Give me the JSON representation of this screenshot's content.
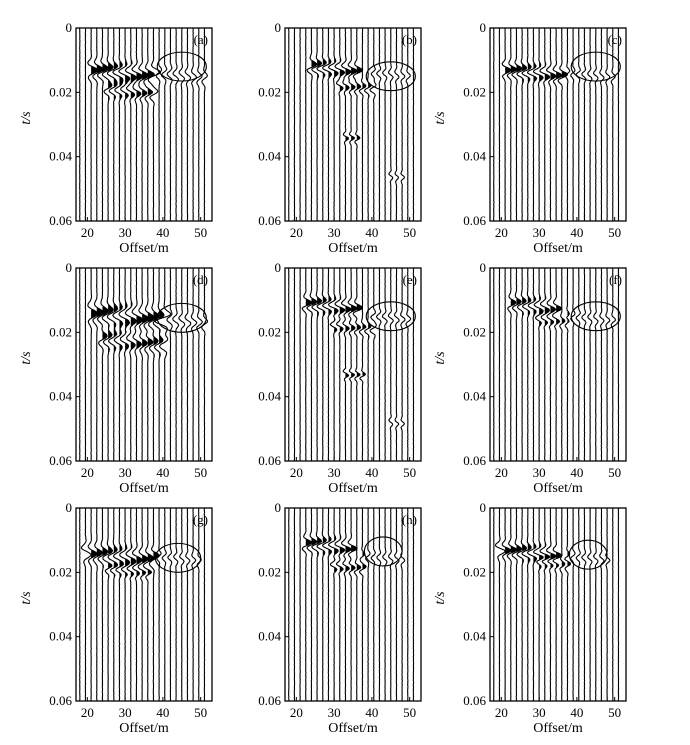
{
  "chart_data": [
    {
      "id": "a",
      "type": "line",
      "panel_label": "(a)",
      "xlabel": "Offset/m",
      "ylabel": "t/s",
      "xlim": [
        17,
        53
      ],
      "ylim": [
        0,
        0.06
      ],
      "y_inverted": true,
      "xticks": [
        20,
        30,
        40,
        50
      ],
      "xtick_labels": [
        "20",
        "30",
        "40",
        "50"
      ],
      "yticks": [
        0,
        0.02,
        0.04,
        0.06
      ],
      "ytick_labels": [
        "0",
        "0.02",
        "0.04",
        "0.06"
      ],
      "trace_offsets": [
        18,
        19.5,
        21,
        22.5,
        24,
        25.5,
        27,
        28.5,
        30,
        31.5,
        33,
        34.5,
        36,
        37.5,
        39,
        40.5,
        42,
        43.5,
        45,
        46.5,
        48,
        49.5,
        51
      ],
      "events": [
        {
          "offset_start": 21,
          "offset_end": 37,
          "t": 0.013,
          "amp": 1.0,
          "width": 0.0035,
          "fill": true
        },
        {
          "offset_start": 25,
          "offset_end": 37,
          "t": 0.019,
          "amp": 0.7,
          "width": 0.003,
          "fill": true
        },
        {
          "offset_start": 38,
          "offset_end": 51,
          "t": 0.014,
          "amp": 0.5,
          "width": 0.003,
          "fill": false
        }
      ],
      "annotation": {
        "type": "ellipse",
        "cx": 45,
        "cy": 0.012,
        "rx": 6.5,
        "ry": 0.0045
      }
    },
    {
      "id": "b",
      "type": "line",
      "panel_label": "(b)",
      "xlabel": "Offset/m",
      "ylabel": "",
      "xlim": [
        17,
        53
      ],
      "ylim": [
        0,
        0.06
      ],
      "y_inverted": true,
      "xticks": [
        20,
        30,
        40,
        50
      ],
      "xtick_labels": [
        "20",
        "30",
        "40",
        "50"
      ],
      "yticks": [
        0,
        0.02,
        0.04,
        0.06
      ],
      "ytick_labels": [
        "0",
        "0.02",
        "0.04",
        "0.06"
      ],
      "trace_offsets": [
        18,
        19.5,
        21,
        22.5,
        24,
        25.5,
        27,
        28.5,
        30,
        31.5,
        33,
        34.5,
        36,
        37.5,
        39,
        40.5,
        42,
        43.5,
        45,
        46.5,
        48,
        49.5,
        51
      ],
      "events": [
        {
          "offset_start": 24,
          "offset_end": 36,
          "t": 0.012,
          "amp": 0.9,
          "width": 0.003,
          "fill": true
        },
        {
          "offset_start": 32,
          "offset_end": 40,
          "t": 0.018,
          "amp": 0.6,
          "width": 0.0025,
          "fill": true
        },
        {
          "offset_start": 40,
          "offset_end": 50,
          "t": 0.014,
          "amp": 0.4,
          "width": 0.0025,
          "fill": false
        },
        {
          "offset_start": 33,
          "offset_end": 36,
          "t": 0.034,
          "amp": 0.5,
          "width": 0.002,
          "fill": true
        },
        {
          "offset_start": 45,
          "offset_end": 48,
          "t": 0.046,
          "amp": 0.35,
          "width": 0.002,
          "fill": false
        }
      ],
      "annotation": {
        "type": "ellipse",
        "cx": 45,
        "cy": 0.015,
        "rx": 6.5,
        "ry": 0.0045
      }
    },
    {
      "id": "c",
      "type": "line",
      "panel_label": "(c)",
      "xlabel": "Offset/m",
      "ylabel": "t/s",
      "xlim": [
        17,
        53
      ],
      "ylim": [
        0,
        0.06
      ],
      "y_inverted": true,
      "xticks": [
        20,
        30,
        40,
        50
      ],
      "xtick_labels": [
        "20",
        "30",
        "40",
        "50"
      ],
      "yticks": [
        0,
        0.02,
        0.04,
        0.06
      ],
      "ytick_labels": [
        "0",
        "0.02",
        "0.04",
        "0.06"
      ],
      "trace_offsets": [
        18,
        19.5,
        21,
        22.5,
        24,
        25.5,
        27,
        28.5,
        30,
        31.5,
        33,
        34.5,
        36,
        37.5,
        39,
        40.5,
        42,
        43.5,
        45,
        46.5,
        48,
        49.5,
        51
      ],
      "events": [
        {
          "offset_start": 21,
          "offset_end": 36,
          "t": 0.013,
          "amp": 0.9,
          "width": 0.003,
          "fill": true
        },
        {
          "offset_start": 38,
          "offset_end": 50,
          "t": 0.014,
          "amp": 0.4,
          "width": 0.0025,
          "fill": false
        }
      ],
      "annotation": {
        "type": "ellipse",
        "cx": 45,
        "cy": 0.012,
        "rx": 6.5,
        "ry": 0.0045
      }
    },
    {
      "id": "d",
      "type": "line",
      "panel_label": "(d)",
      "xlabel": "Offset/m",
      "ylabel": "t/s",
      "xlim": [
        17,
        53
      ],
      "ylim": [
        0,
        0.06
      ],
      "y_inverted": true,
      "xticks": [
        20,
        30,
        40,
        50
      ],
      "xtick_labels": [
        "20",
        "30",
        "40",
        "50"
      ],
      "yticks": [
        0,
        0.02,
        0.04,
        0.06
      ],
      "ytick_labels": [
        "0",
        "0.02",
        "0.04",
        "0.06"
      ],
      "trace_offsets": [
        18,
        19.5,
        21,
        22.5,
        24,
        25.5,
        27,
        28.5,
        30,
        31.5,
        33,
        34.5,
        36,
        37.5,
        39,
        40.5,
        42,
        43.5,
        45,
        46.5,
        48,
        49.5,
        51
      ],
      "events": [
        {
          "offset_start": 21,
          "offset_end": 40,
          "t": 0.014,
          "amp": 1.0,
          "width": 0.004,
          "fill": true
        },
        {
          "offset_start": 24,
          "offset_end": 40,
          "t": 0.022,
          "amp": 0.8,
          "width": 0.0035,
          "fill": true
        },
        {
          "offset_start": 40,
          "offset_end": 51,
          "t": 0.016,
          "amp": 0.55,
          "width": 0.003,
          "fill": false
        }
      ],
      "annotation": {
        "type": "ellipse",
        "cx": 45,
        "cy": 0.0155,
        "rx": 6.5,
        "ry": 0.0045
      }
    },
    {
      "id": "e",
      "type": "line",
      "panel_label": "(e)",
      "xlabel": "Offset/m",
      "ylabel": "",
      "xlim": [
        17,
        53
      ],
      "ylim": [
        0,
        0.06
      ],
      "y_inverted": true,
      "xticks": [
        20,
        30,
        40,
        50
      ],
      "xtick_labels": [
        "20",
        "30",
        "40",
        "50"
      ],
      "yticks": [
        0,
        0.02,
        0.04,
        0.06
      ],
      "ytick_labels": [
        "0",
        "0.02",
        "0.04",
        "0.06"
      ],
      "trace_offsets": [
        18,
        19.5,
        21,
        22.5,
        24,
        25.5,
        27,
        28.5,
        30,
        31.5,
        33,
        34.5,
        36,
        37.5,
        39,
        40.5,
        42,
        43.5,
        45,
        46.5,
        48,
        49.5,
        51
      ],
      "events": [
        {
          "offset_start": 22,
          "offset_end": 36,
          "t": 0.011,
          "amp": 0.9,
          "width": 0.003,
          "fill": true
        },
        {
          "offset_start": 30,
          "offset_end": 40,
          "t": 0.018,
          "amp": 0.6,
          "width": 0.0025,
          "fill": true
        },
        {
          "offset_start": 40,
          "offset_end": 50,
          "t": 0.015,
          "amp": 0.45,
          "width": 0.0025,
          "fill": false
        },
        {
          "offset_start": 33,
          "offset_end": 37,
          "t": 0.033,
          "amp": 0.5,
          "width": 0.002,
          "fill": true
        },
        {
          "offset_start": 45,
          "offset_end": 48,
          "t": 0.048,
          "amp": 0.35,
          "width": 0.002,
          "fill": false
        }
      ],
      "annotation": {
        "type": "ellipse",
        "cx": 45,
        "cy": 0.015,
        "rx": 6.5,
        "ry": 0.0045
      }
    },
    {
      "id": "f",
      "type": "line",
      "panel_label": "(f)",
      "xlabel": "Offset/m",
      "ylabel": "t/s",
      "xlim": [
        17,
        53
      ],
      "ylim": [
        0,
        0.06
      ],
      "y_inverted": true,
      "xticks": [
        20,
        30,
        40,
        50
      ],
      "xtick_labels": [
        "20",
        "30",
        "40",
        "50"
      ],
      "yticks": [
        0,
        0.02,
        0.04,
        0.06
      ],
      "ytick_labels": [
        "0",
        "0.02",
        "0.04",
        "0.06"
      ],
      "trace_offsets": [
        18,
        19.5,
        21,
        22.5,
        24,
        25.5,
        27,
        28.5,
        30,
        31.5,
        33,
        34.5,
        36,
        37.5,
        39,
        40.5,
        42,
        43.5,
        45,
        46.5,
        48,
        49.5,
        51
      ],
      "events": [
        {
          "offset_start": 22,
          "offset_end": 34,
          "t": 0.011,
          "amp": 0.8,
          "width": 0.003,
          "fill": true
        },
        {
          "offset_start": 30,
          "offset_end": 38,
          "t": 0.016,
          "amp": 0.5,
          "width": 0.0025,
          "fill": true
        },
        {
          "offset_start": 38,
          "offset_end": 50,
          "t": 0.015,
          "amp": 0.4,
          "width": 0.0025,
          "fill": false
        }
      ],
      "annotation": {
        "type": "ellipse",
        "cx": 45,
        "cy": 0.015,
        "rx": 6.5,
        "ry": 0.0045
      }
    },
    {
      "id": "g",
      "type": "line",
      "panel_label": "(g)",
      "xlabel": "Offset/m",
      "ylabel": "t/s",
      "xlim": [
        17,
        53
      ],
      "ylim": [
        0,
        0.06
      ],
      "y_inverted": true,
      "xticks": [
        20,
        30,
        40,
        50
      ],
      "xtick_labels": [
        "20",
        "30",
        "40",
        "50"
      ],
      "yticks": [
        0,
        0.02,
        0.04,
        0.06
      ],
      "ytick_labels": [
        "0",
        "0.02",
        "0.04",
        "0.06"
      ],
      "trace_offsets": [
        18,
        19.5,
        21,
        22.5,
        24,
        25.5,
        27,
        28.5,
        30,
        31.5,
        33,
        34.5,
        36,
        37.5,
        39,
        40.5,
        42,
        43.5,
        45,
        46.5,
        48,
        49.5,
        51
      ],
      "events": [
        {
          "offset_start": 20,
          "offset_end": 38,
          "t": 0.014,
          "amp": 0.9,
          "width": 0.0035,
          "fill": true
        },
        {
          "offset_start": 26,
          "offset_end": 36,
          "t": 0.019,
          "amp": 0.5,
          "width": 0.0025,
          "fill": true
        },
        {
          "offset_start": 38,
          "offset_end": 50,
          "t": 0.015,
          "amp": 0.4,
          "width": 0.0025,
          "fill": false
        }
      ],
      "annotation": {
        "type": "ellipse",
        "cx": 44,
        "cy": 0.0155,
        "rx": 6.0,
        "ry": 0.0045
      }
    },
    {
      "id": "h",
      "type": "line",
      "panel_label": "(h)",
      "xlabel": "Offset/m",
      "ylabel": "",
      "xlim": [
        17,
        53
      ],
      "ylim": [
        0,
        0.06
      ],
      "y_inverted": true,
      "xticks": [
        20,
        30,
        40,
        50
      ],
      "xtick_labels": [
        "20",
        "30",
        "40",
        "50"
      ],
      "yticks": [
        0,
        0.02,
        0.04,
        0.06
      ],
      "ytick_labels": [
        "0",
        "0.02",
        "0.04",
        "0.06"
      ],
      "trace_offsets": [
        18,
        19.5,
        21,
        22.5,
        24,
        25.5,
        27,
        28.5,
        30,
        31.5,
        33,
        34.5,
        36,
        37.5,
        39,
        40.5,
        42,
        43.5,
        45,
        46.5,
        48,
        49.5,
        51
      ],
      "events": [
        {
          "offset_start": 22,
          "offset_end": 34,
          "t": 0.011,
          "amp": 0.9,
          "width": 0.003,
          "fill": true
        },
        {
          "offset_start": 30,
          "offset_end": 38,
          "t": 0.018,
          "amp": 0.6,
          "width": 0.0025,
          "fill": true
        },
        {
          "offset_start": 38,
          "offset_end": 48,
          "t": 0.015,
          "amp": 0.4,
          "width": 0.0025,
          "fill": false
        }
      ],
      "annotation": {
        "type": "ellipse",
        "cx": 43,
        "cy": 0.0135,
        "rx": 5.0,
        "ry": 0.0045
      }
    },
    {
      "id": "i",
      "type": "line",
      "panel_label": "",
      "xlabel": "Offset/m",
      "ylabel": "t/s",
      "xlim": [
        17,
        53
      ],
      "ylim": [
        0,
        0.06
      ],
      "y_inverted": true,
      "xticks": [
        20,
        30,
        40,
        50
      ],
      "xtick_labels": [
        "20",
        "30",
        "40",
        "50"
      ],
      "yticks": [
        0,
        0.02,
        0.04,
        0.06
      ],
      "ytick_labels": [
        "0",
        "0.02",
        "0.04",
        "0.06"
      ],
      "trace_offsets": [
        18,
        19.5,
        21,
        22.5,
        24,
        25.5,
        27,
        28.5,
        30,
        31.5,
        33,
        34.5,
        36,
        37.5,
        39,
        40.5,
        42,
        43.5,
        45,
        46.5,
        48,
        49.5,
        51
      ],
      "events": [
        {
          "offset_start": 20,
          "offset_end": 34,
          "t": 0.013,
          "amp": 0.9,
          "width": 0.003,
          "fill": true
        },
        {
          "offset_start": 30,
          "offset_end": 38,
          "t": 0.017,
          "amp": 0.5,
          "width": 0.0025,
          "fill": true
        },
        {
          "offset_start": 38,
          "offset_end": 48,
          "t": 0.015,
          "amp": 0.4,
          "width": 0.0025,
          "fill": false
        }
      ],
      "annotation": {
        "type": "ellipse",
        "cx": 43,
        "cy": 0.0145,
        "rx": 5.0,
        "ry": 0.0045
      }
    }
  ]
}
